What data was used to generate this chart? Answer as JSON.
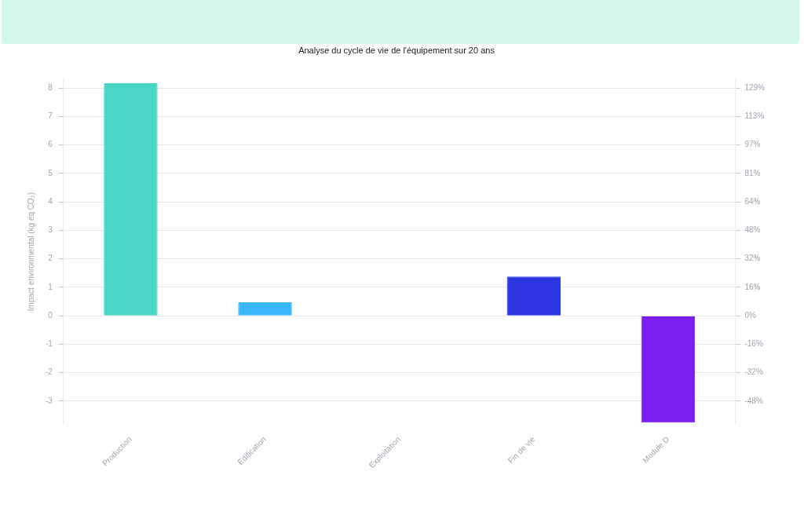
{
  "chart_data": {
    "type": "bar",
    "title": "Analyse du cycle de vie de l'équipement sur 20 ans",
    "ylabel": "Impact environmental (kg éq CO₂)",
    "categories": [
      "Production",
      "Edification",
      "Exploitation",
      "Fin de vie",
      "Module D"
    ],
    "values": [
      8.17,
      0.47,
      0,
      1.38,
      -3.75
    ],
    "colors": [
      "#4ad6c4",
      "#38b6f8",
      "#5ac8e0",
      "#2b35e0",
      "#7b1ff2"
    ],
    "ylim": [
      -3.8,
      8.3
    ],
    "yticks": [
      -3,
      -2,
      -1,
      0,
      1,
      2,
      3,
      4,
      5,
      6,
      7,
      8
    ],
    "y2lim": [
      -61.18,
      133.63
    ],
    "y2ticks": [
      {
        "value": -48.3,
        "label": "-48%"
      },
      {
        "value": -32.2,
        "label": "-32%"
      },
      {
        "value": -16.1,
        "label": "-16%"
      },
      {
        "value": 0,
        "label": "0%"
      },
      {
        "value": 16.1,
        "label": "16%"
      },
      {
        "value": 32.2,
        "label": "32%"
      },
      {
        "value": 48.3,
        "label": "48%"
      },
      {
        "value": 64.4,
        "label": "64%"
      },
      {
        "value": 80.5,
        "label": "81%"
      },
      {
        "value": 96.6,
        "label": "97%"
      },
      {
        "value": 112.7,
        "label": "113%"
      },
      {
        "value": 128.8,
        "label": "129%"
      }
    ],
    "grid": "y",
    "legend": false
  }
}
